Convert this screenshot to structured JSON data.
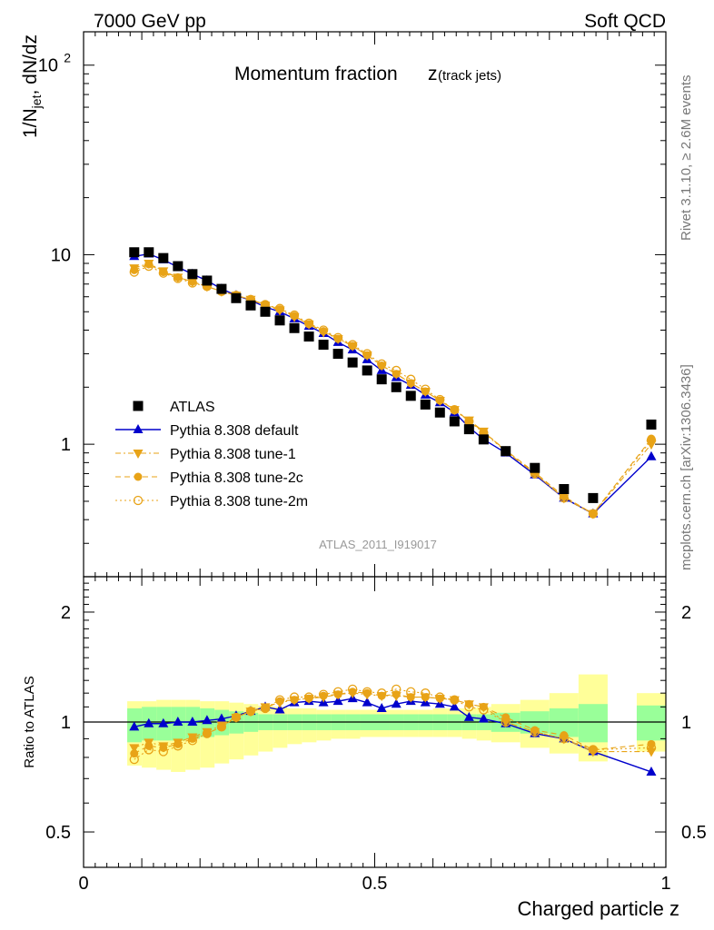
{
  "header": {
    "left": "7000 GeV pp",
    "right": "Soft QCD"
  },
  "side_labels": {
    "rivet": "Rivet 3.1.10, ≥ 2.6M events",
    "mcplots": "mcplots.cern.ch [arXiv:1306.3436]"
  },
  "colors": {
    "data": "#000000",
    "default": "#0000cc",
    "tunes": "#e8a317",
    "band_inner": "#99ff99",
    "band_outer": "#ffff99"
  },
  "chart_data": [
    {
      "type": "line",
      "panel": "main",
      "title": "Momentum fraction",
      "title_var": "z",
      "title_sub": "(track jets)",
      "ylabel": "1/N_jet dN/dz",
      "yscale": "log",
      "ylim": [
        0.2,
        150
      ],
      "xlim": [
        0,
        1
      ],
      "yticks": [
        {
          "value": 1,
          "label": "1"
        },
        {
          "value": 10,
          "label": "10"
        },
        {
          "value": 100,
          "label": "10^2"
        }
      ],
      "watermark": "ATLAS_2011_I919017",
      "legend_position": "lower-left",
      "x": [
        0.087,
        0.112,
        0.137,
        0.162,
        0.187,
        0.212,
        0.237,
        0.262,
        0.287,
        0.312,
        0.337,
        0.362,
        0.387,
        0.412,
        0.437,
        0.462,
        0.487,
        0.512,
        0.537,
        0.562,
        0.587,
        0.612,
        0.637,
        0.662,
        0.687,
        0.725,
        0.775,
        0.825,
        0.875,
        0.975
      ],
      "series": [
        {
          "name": "ATLAS",
          "style": "data",
          "values": [
            10.3,
            10.3,
            9.6,
            8.7,
            7.9,
            7.3,
            6.6,
            5.9,
            5.4,
            5.0,
            4.5,
            4.1,
            3.7,
            3.35,
            3.0,
            2.7,
            2.45,
            2.2,
            2.0,
            1.8,
            1.62,
            1.47,
            1.32,
            1.2,
            1.06,
            0.92,
            0.75,
            0.58,
            0.52,
            1.27
          ]
        },
        {
          "name": "Pythia 8.308 default",
          "style": "default",
          "values": [
            9.8,
            10.1,
            9.4,
            8.6,
            7.9,
            7.3,
            6.6,
            6.1,
            5.75,
            5.3,
            5.0,
            4.6,
            4.2,
            3.85,
            3.45,
            3.15,
            2.8,
            2.45,
            2.25,
            2.05,
            1.82,
            1.66,
            1.47,
            1.23,
            1.06,
            0.9,
            0.69,
            0.52,
            0.43,
            0.86
          ]
        },
        {
          "name": "Pythia 8.308 tune-1",
          "style": "tune1",
          "values": [
            8.5,
            9.0,
            8.2,
            7.6,
            7.2,
            6.8,
            6.4,
            6.1,
            5.8,
            5.4,
            5.1,
            4.7,
            4.3,
            3.9,
            3.6,
            3.3,
            2.95,
            2.6,
            2.35,
            2.1,
            1.9,
            1.7,
            1.52,
            1.34,
            1.17,
            0.92,
            0.7,
            0.52,
            0.43,
            1.0
          ]
        },
        {
          "name": "Pythia 8.308 tune-2c",
          "style": "tune2c",
          "values": [
            8.3,
            8.9,
            8.1,
            7.6,
            7.2,
            6.8,
            6.4,
            6.1,
            5.8,
            5.45,
            5.15,
            4.75,
            4.3,
            3.95,
            3.6,
            3.3,
            2.95,
            2.6,
            2.35,
            2.1,
            1.9,
            1.7,
            1.52,
            1.33,
            1.16,
            0.93,
            0.71,
            0.53,
            0.43,
            1.07
          ]
        },
        {
          "name": "Pythia 8.308 tune-2m",
          "style": "tune2m",
          "values": [
            8.1,
            8.7,
            8.0,
            7.5,
            7.1,
            6.8,
            6.4,
            6.1,
            5.8,
            5.45,
            5.2,
            4.8,
            4.35,
            4.0,
            3.65,
            3.35,
            3.0,
            2.65,
            2.45,
            2.2,
            1.95,
            1.72,
            1.52,
            1.32,
            1.15,
            0.92,
            0.7,
            0.52,
            0.43,
            1.05
          ]
        }
      ]
    },
    {
      "type": "line",
      "panel": "ratio",
      "ylabel": "Ratio to ATLAS",
      "xlabel": "Charged particle z",
      "ylim": [
        0.4,
        2.5
      ],
      "xlim": [
        0,
        1
      ],
      "xticks": [
        {
          "value": 0,
          "label": "0"
        },
        {
          "value": 0.5,
          "label": "0.5"
        },
        {
          "value": 1,
          "label": "1"
        }
      ],
      "yticks": [
        {
          "value": 0.5,
          "label": "0.5"
        },
        {
          "value": 1,
          "label": "1"
        },
        {
          "value": 2,
          "label": "2"
        }
      ],
      "x": [
        0.087,
        0.112,
        0.137,
        0.162,
        0.187,
        0.212,
        0.237,
        0.262,
        0.287,
        0.312,
        0.337,
        0.362,
        0.387,
        0.412,
        0.437,
        0.462,
        0.487,
        0.512,
        0.537,
        0.562,
        0.587,
        0.612,
        0.637,
        0.662,
        0.687,
        0.725,
        0.775,
        0.825,
        0.875,
        0.975
      ],
      "uncertainty_bands": {
        "bins": [
          [
            0.075,
            0.1
          ],
          [
            0.1,
            0.125
          ],
          [
            0.125,
            0.15
          ],
          [
            0.15,
            0.175
          ],
          [
            0.175,
            0.2
          ],
          [
            0.2,
            0.225
          ],
          [
            0.225,
            0.25
          ],
          [
            0.25,
            0.275
          ],
          [
            0.275,
            0.3
          ],
          [
            0.3,
            0.325
          ],
          [
            0.325,
            0.35
          ],
          [
            0.35,
            0.375
          ],
          [
            0.375,
            0.4
          ],
          [
            0.4,
            0.425
          ],
          [
            0.425,
            0.45
          ],
          [
            0.45,
            0.475
          ],
          [
            0.475,
            0.5
          ],
          [
            0.5,
            0.525
          ],
          [
            0.525,
            0.55
          ],
          [
            0.55,
            0.575
          ],
          [
            0.575,
            0.6
          ],
          [
            0.6,
            0.625
          ],
          [
            0.625,
            0.65
          ],
          [
            0.65,
            0.675
          ],
          [
            0.675,
            0.7
          ],
          [
            0.7,
            0.75
          ],
          [
            0.75,
            0.8
          ],
          [
            0.8,
            0.85
          ],
          [
            0.85,
            0.9
          ],
          [
            0.95,
            1.0
          ]
        ],
        "inner": [
          [
            0.88,
            1.09
          ],
          [
            0.89,
            1.1
          ],
          [
            0.89,
            1.1
          ],
          [
            0.89,
            1.1
          ],
          [
            0.9,
            1.1
          ],
          [
            0.91,
            1.09
          ],
          [
            0.92,
            1.08
          ],
          [
            0.93,
            1.07
          ],
          [
            0.94,
            1.06
          ],
          [
            0.95,
            1.05
          ],
          [
            0.95,
            1.05
          ],
          [
            0.95,
            1.05
          ],
          [
            0.95,
            1.05
          ],
          [
            0.95,
            1.05
          ],
          [
            0.95,
            1.05
          ],
          [
            0.95,
            1.05
          ],
          [
            0.95,
            1.05
          ],
          [
            0.95,
            1.05
          ],
          [
            0.95,
            1.05
          ],
          [
            0.95,
            1.05
          ],
          [
            0.95,
            1.05
          ],
          [
            0.95,
            1.05
          ],
          [
            0.95,
            1.05
          ],
          [
            0.95,
            1.05
          ],
          [
            0.95,
            1.05
          ],
          [
            0.94,
            1.06
          ],
          [
            0.93,
            1.07
          ],
          [
            0.91,
            1.09
          ],
          [
            0.88,
            1.12
          ],
          [
            0.89,
            1.11
          ]
        ],
        "outer": [
          [
            0.76,
            1.14
          ],
          [
            0.75,
            1.14
          ],
          [
            0.74,
            1.15
          ],
          [
            0.73,
            1.15
          ],
          [
            0.74,
            1.15
          ],
          [
            0.75,
            1.14
          ],
          [
            0.77,
            1.14
          ],
          [
            0.79,
            1.13
          ],
          [
            0.81,
            1.12
          ],
          [
            0.83,
            1.11
          ],
          [
            0.85,
            1.1
          ],
          [
            0.87,
            1.09
          ],
          [
            0.88,
            1.09
          ],
          [
            0.89,
            1.08
          ],
          [
            0.9,
            1.08
          ],
          [
            0.9,
            1.08
          ],
          [
            0.91,
            1.08
          ],
          [
            0.91,
            1.08
          ],
          [
            0.91,
            1.08
          ],
          [
            0.91,
            1.08
          ],
          [
            0.91,
            1.08
          ],
          [
            0.91,
            1.09
          ],
          [
            0.91,
            1.09
          ],
          [
            0.9,
            1.09
          ],
          [
            0.89,
            1.1
          ],
          [
            0.88,
            1.12
          ],
          [
            0.85,
            1.15
          ],
          [
            0.82,
            1.2
          ],
          [
            0.78,
            1.35
          ],
          [
            0.83,
            1.2
          ]
        ]
      },
      "series": [
        {
          "name": "Pythia 8.308 default",
          "style": "default",
          "values": [
            0.97,
            0.99,
            0.99,
            1.0,
            1.0,
            1.01,
            1.02,
            1.04,
            1.07,
            1.1,
            1.08,
            1.13,
            1.14,
            1.13,
            1.14,
            1.16,
            1.13,
            1.09,
            1.12,
            1.14,
            1.13,
            1.12,
            1.1,
            1.03,
            1.02,
            0.99,
            0.93,
            0.9,
            0.83,
            0.73
          ]
        },
        {
          "name": "Pythia 8.308 tune-1",
          "style": "tune1",
          "values": [
            0.85,
            0.88,
            0.86,
            0.88,
            0.91,
            0.94,
            0.98,
            1.03,
            1.07,
            1.1,
            1.13,
            1.15,
            1.16,
            1.17,
            1.19,
            1.2,
            1.19,
            1.18,
            1.18,
            1.17,
            1.17,
            1.16,
            1.15,
            1.12,
            1.1,
            1.0,
            0.94,
            0.9,
            0.83,
            0.83
          ]
        },
        {
          "name": "Pythia 8.308 tune-2c",
          "style": "tune2c",
          "values": [
            0.82,
            0.86,
            0.85,
            0.87,
            0.9,
            0.93,
            0.97,
            1.03,
            1.07,
            1.09,
            1.14,
            1.15,
            1.16,
            1.18,
            1.19,
            1.21,
            1.2,
            1.18,
            1.19,
            1.17,
            1.17,
            1.16,
            1.15,
            1.12,
            1.1,
            1.03,
            0.95,
            0.92,
            0.84,
            0.87
          ]
        },
        {
          "name": "Pythia 8.308 tune-2m",
          "style": "tune2m",
          "values": [
            0.79,
            0.84,
            0.83,
            0.86,
            0.89,
            0.93,
            0.97,
            1.03,
            1.07,
            1.09,
            1.15,
            1.17,
            1.17,
            1.19,
            1.21,
            1.23,
            1.21,
            1.2,
            1.23,
            1.21,
            1.2,
            1.17,
            1.15,
            1.1,
            1.08,
            1.0,
            0.94,
            0.9,
            0.84,
            0.85
          ]
        }
      ]
    }
  ]
}
